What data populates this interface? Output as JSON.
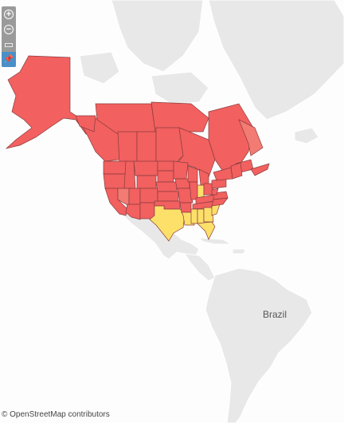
{
  "map": {
    "labels": {
      "brazil": "Brazil"
    },
    "attribution": "© OpenStreetMap contributors",
    "colors": {
      "ocean": "#fdfdfd",
      "land": "#e8e8e8",
      "land_border": "#ffffff",
      "region_high": "#f26060",
      "region_mid": "#f27b73",
      "region_low": "#fce06a",
      "region_border": "#8a3c3c"
    }
  },
  "toolbar": {
    "zoom_in": "+",
    "zoom_out": "−",
    "select": "▭",
    "pin": "📌"
  }
}
